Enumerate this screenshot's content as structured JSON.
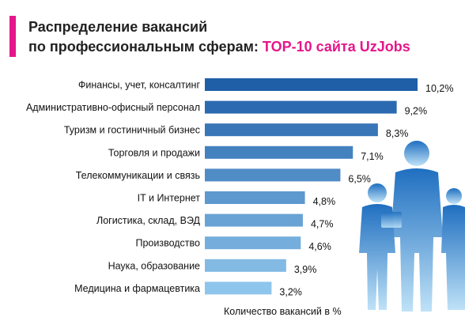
{
  "title": {
    "line1": "Распределение вакансий",
    "line2_prefix": "по профессиональным сферам: ",
    "line2_highlight": "TOP-10 сайта UzJobs"
  },
  "colors": {
    "accent": "#e6168a",
    "bar_dark": "#1f5fa8",
    "bar_light": "#8ec5ec",
    "figure": "#3a9ad9"
  },
  "chart_data": {
    "type": "bar",
    "orientation": "horizontal",
    "title": "Распределение вакансий по профессиональным сферам: TOP-10 сайта UzJobs",
    "xlabel": "Количество вакансий в %",
    "ylabel": "",
    "xlim": [
      0,
      10.2
    ],
    "grid": false,
    "categories": [
      "Финансы, учет, консалтинг",
      "Административно-офисный персонал",
      "Туризм и гостиничный бизнес",
      "Торговля и продажи",
      "Телекоммуникации и связь",
      "IT и Интернет",
      "Логистика, склад, ВЭД",
      "Производство",
      "Наука, образование",
      "Медицина и фармацевтика"
    ],
    "values": [
      10.2,
      9.2,
      8.3,
      7.1,
      6.5,
      4.8,
      4.7,
      4.6,
      3.9,
      3.2
    ],
    "value_labels": [
      "10,2%",
      "9,2%",
      "8,3%",
      "7,1%",
      "6,5%",
      "4,8%",
      "4,7%",
      "4,6%",
      "3,9%",
      "3,2%"
    ]
  }
}
